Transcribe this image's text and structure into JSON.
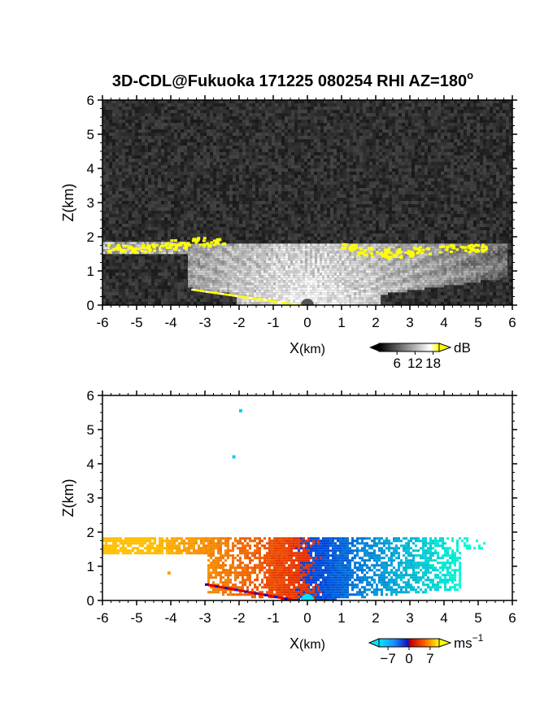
{
  "title": "3D-CDL@Fukuoka 171225 080254 RHI AZ=180",
  "title_superscript": "o",
  "chart_data": [
    {
      "type": "heatmap",
      "name": "reflectivity-rhi",
      "xlabel_main": "X",
      "xlabel_unit": "(km)",
      "ylabel": "Z(km)",
      "xlim": [
        -6,
        6
      ],
      "ylim": [
        0,
        6
      ],
      "xticks": [
        "-6",
        "-5",
        "-4",
        "-3",
        "-2",
        "-1",
        "0",
        "1",
        "2",
        "3",
        "4",
        "5",
        "6"
      ],
      "yticks": [
        "0",
        "1",
        "2",
        "3",
        "4",
        "5",
        "6"
      ],
      "colorbar": {
        "unit": "dB",
        "ticks": [
          "6",
          "12",
          "18"
        ],
        "tick_values": [
          6,
          12,
          18
        ],
        "range": [
          0,
          20
        ]
      },
      "background_noise_color": "#2a2a2a",
      "echo_top_km": 1.8,
      "high_echo_patches": [
        {
          "x": -5.6,
          "z": 1.68
        },
        {
          "x": -5.3,
          "z": 1.66
        },
        {
          "x": -4.9,
          "z": 1.7
        },
        {
          "x": -4.5,
          "z": 1.72
        },
        {
          "x": -4.0,
          "z": 1.82
        },
        {
          "x": -3.7,
          "z": 1.78
        },
        {
          "x": -3.2,
          "z": 1.88
        },
        {
          "x": -2.7,
          "z": 1.85
        },
        {
          "x": 1.2,
          "z": 1.7
        },
        {
          "x": 1.6,
          "z": 1.6
        },
        {
          "x": 2.1,
          "z": 1.55
        },
        {
          "x": 2.5,
          "z": 1.5
        },
        {
          "x": 2.8,
          "z": 1.55
        },
        {
          "x": 3.3,
          "z": 1.62
        },
        {
          "x": 4.1,
          "z": 1.68
        },
        {
          "x": 4.7,
          "z": 1.68
        },
        {
          "x": 5.0,
          "z": 1.7
        }
      ]
    },
    {
      "type": "heatmap",
      "name": "doppler-velocity-rhi",
      "xlabel_main": "X",
      "xlabel_unit": "(km)",
      "ylabel": "Z(km)",
      "xlim": [
        -6,
        6
      ],
      "ylim": [
        0,
        6
      ],
      "xticks": [
        "-6",
        "-5",
        "-4",
        "-3",
        "-2",
        "-1",
        "0",
        "1",
        "2",
        "3",
        "4",
        "5",
        "6"
      ],
      "yticks": [
        "0",
        "1",
        "2",
        "3",
        "4",
        "5",
        "6"
      ],
      "colorbar": {
        "unit": "ms",
        "unit_superscript": "−1",
        "ticks": [
          "−7",
          "0",
          "7"
        ],
        "tick_values": [
          -7,
          0,
          7
        ],
        "range": [
          -10,
          10
        ]
      },
      "echo_top_km": 1.85,
      "isolated_points": [
        {
          "x": -2.0,
          "z": 5.6
        },
        {
          "x": -2.2,
          "z": 4.25
        },
        {
          "x": -4.1,
          "z": 0.85
        },
        {
          "x": 6.0,
          "z": 1.75
        }
      ]
    }
  ]
}
